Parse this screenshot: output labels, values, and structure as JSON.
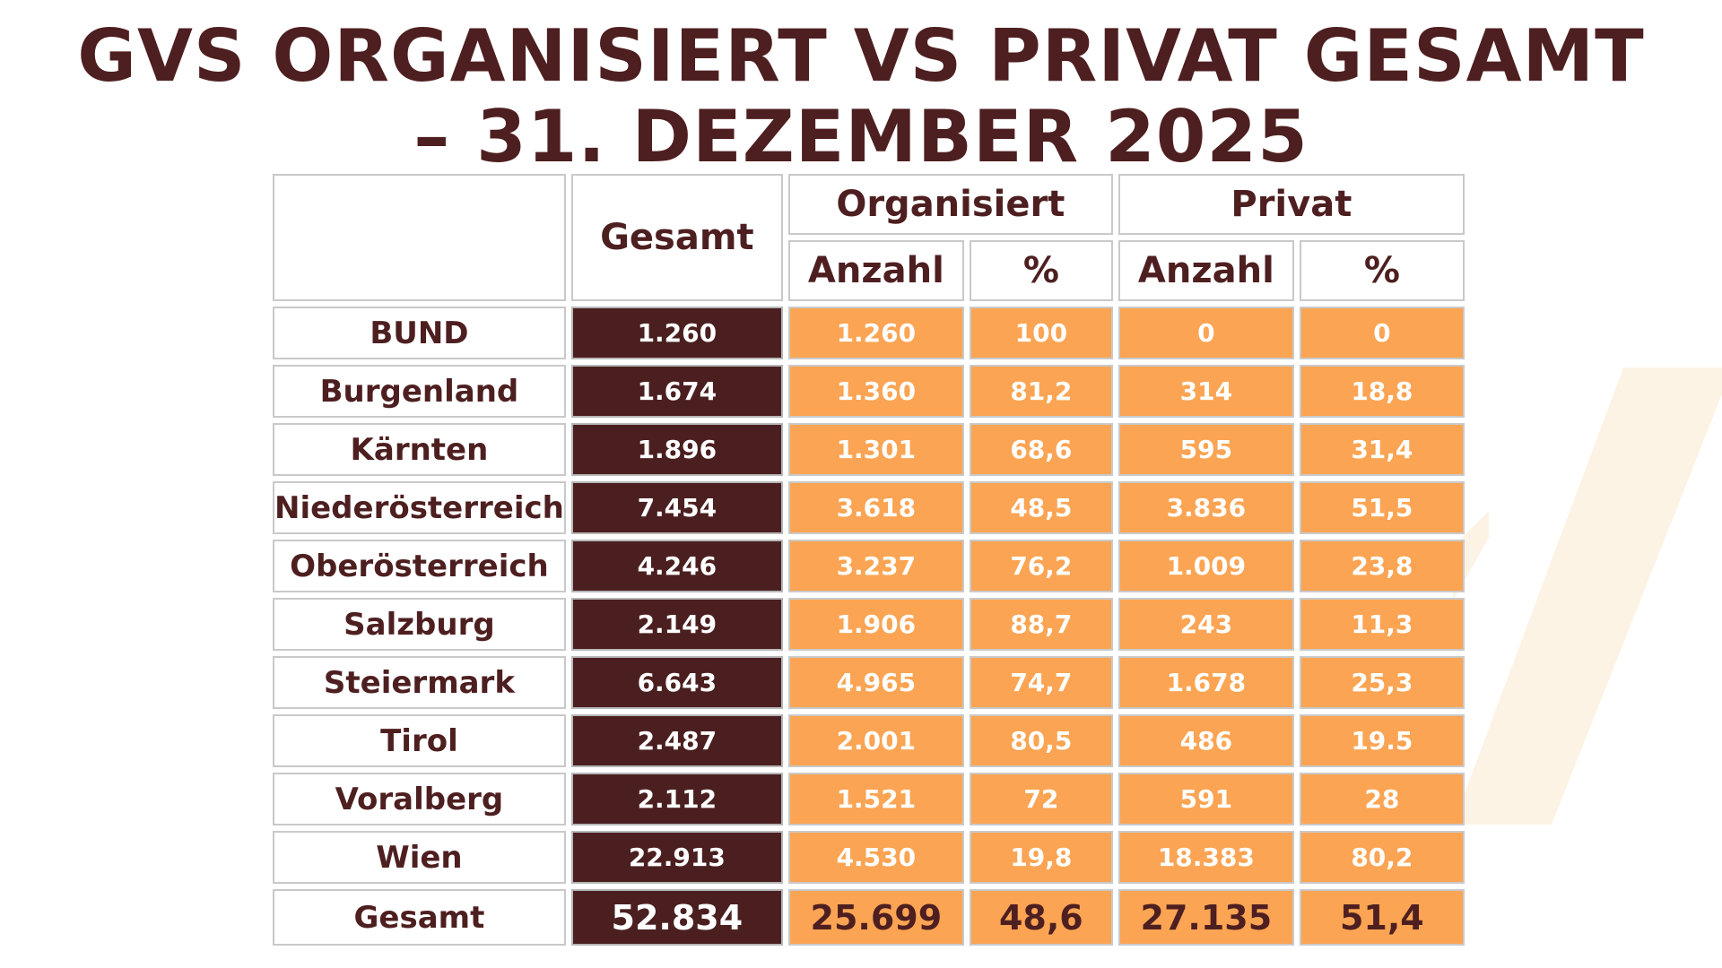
{
  "title": {
    "line1": "GVS ORGANISIERT VS PRIVAT GESAMT",
    "line2": "– 31. DEZEMBER 2025"
  },
  "colors": {
    "dark": "#4b1f20",
    "orange": "#fba453",
    "title": "#4e1f20"
  },
  "table": {
    "headers": {
      "total": "Gesamt",
      "organisiert": "Organisiert",
      "privat": "Privat",
      "anzahl": "Anzahl",
      "percent": "%"
    },
    "rows": [
      {
        "region": "BUND",
        "total": "1.260",
        "org_n": "1.260",
        "org_p": "100",
        "pri_n": "0",
        "pri_p": "0"
      },
      {
        "region": "Burgenland",
        "total": "1.674",
        "org_n": "1.360",
        "org_p": "81,2",
        "pri_n": "314",
        "pri_p": "18,8"
      },
      {
        "region": "Kärnten",
        "total": "1.896",
        "org_n": "1.301",
        "org_p": "68,6",
        "pri_n": "595",
        "pri_p": "31,4"
      },
      {
        "region": "Niederösterreich",
        "total": "7.454",
        "org_n": "3.618",
        "org_p": "48,5",
        "pri_n": "3.836",
        "pri_p": "51,5"
      },
      {
        "region": "Oberösterreich",
        "total": "4.246",
        "org_n": "3.237",
        "org_p": "76,2",
        "pri_n": "1.009",
        "pri_p": "23,8"
      },
      {
        "region": "Salzburg",
        "total": "2.149",
        "org_n": "1.906",
        "org_p": "88,7",
        "pri_n": "243",
        "pri_p": "11,3"
      },
      {
        "region": "Steiermark",
        "total": "6.643",
        "org_n": "4.965",
        "org_p": "74,7",
        "pri_n": "1.678",
        "pri_p": "25,3"
      },
      {
        "region": "Tirol",
        "total": "2.487",
        "org_n": "2.001",
        "org_p": "80,5",
        "pri_n": "486",
        "pri_p": "19.5"
      },
      {
        "region": "Voralberg",
        "total": "2.112",
        "org_n": "1.521",
        "org_p": "72",
        "pri_n": "591",
        "pri_p": "28"
      },
      {
        "region": "Wien",
        "total": "22.913",
        "org_n": "4.530",
        "org_p": "19,8",
        "pri_n": "18.383",
        "pri_p": "80,2"
      }
    ],
    "total_row": {
      "region": "Gesamt",
      "total": "52.834",
      "org_n": "25.699",
      "org_p": "48,6",
      "pri_n": "27.135",
      "pri_p": "51,4"
    }
  }
}
